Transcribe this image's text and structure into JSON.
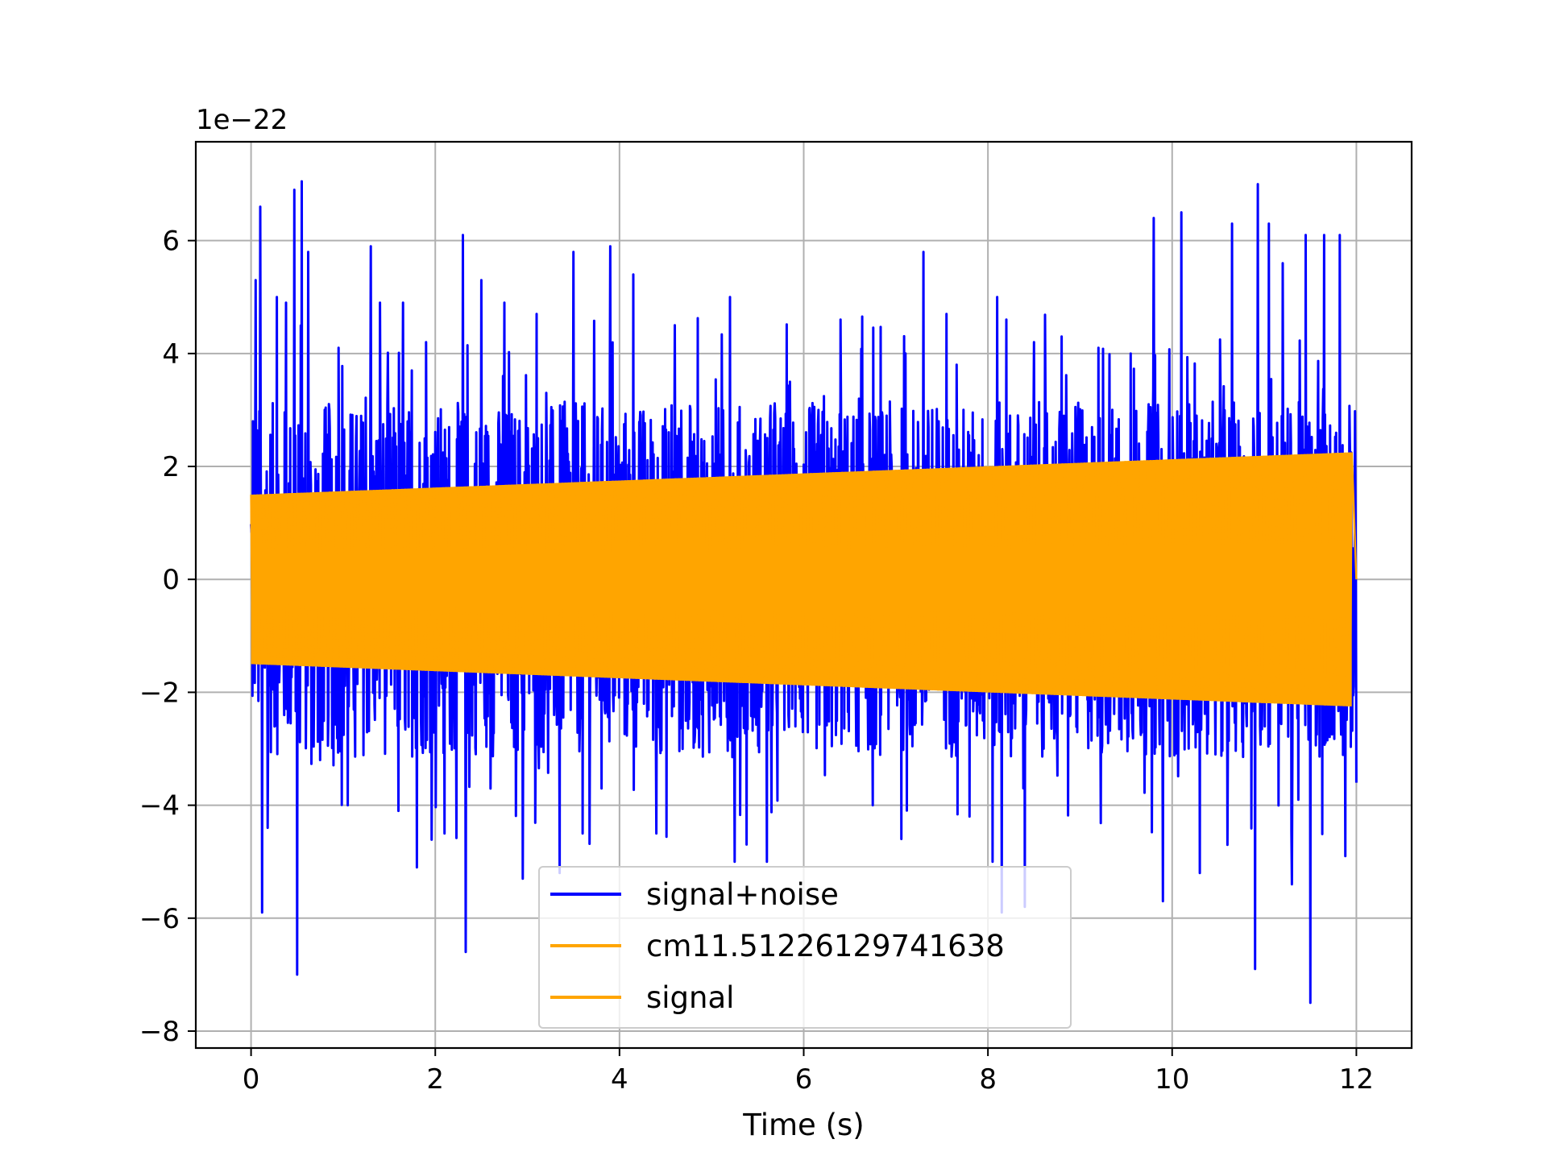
{
  "chart_data": {
    "type": "line",
    "title": "",
    "xlabel": "Time (s)",
    "ylabel": "",
    "y_offset_text": "1e−22",
    "xlim": [
      -0.6,
      12.6
    ],
    "ylim": [
      -8.3,
      7.75
    ],
    "x_ticks": [
      0,
      2,
      4,
      6,
      8,
      10,
      12
    ],
    "x_tick_labels": [
      "0",
      "2",
      "4",
      "6",
      "8",
      "10",
      "12"
    ],
    "y_ticks": [
      -8,
      -6,
      -4,
      -2,
      0,
      2,
      4,
      6
    ],
    "y_tick_labels": [
      "−8",
      "−6",
      "−4",
      "−2",
      "0",
      "2",
      "4",
      "6"
    ],
    "grid": true,
    "legend_position": "bottom-center",
    "series": [
      {
        "name": "signal+noise",
        "color": "#0000ff",
        "x_start": 0,
        "x_end": 12,
        "description_values": {
          "peak_positive": 7.05,
          "peak_negative": -7.55,
          "typical_abs_max": 3.5
        },
        "peaks": [
          [
            0.02,
            2.8
          ],
          [
            0.05,
            5.3
          ],
          [
            0.1,
            6.6
          ],
          [
            0.12,
            -5.9
          ],
          [
            0.18,
            -4.4
          ],
          [
            0.28,
            5.0
          ],
          [
            0.38,
            4.9
          ],
          [
            0.47,
            6.9
          ],
          [
            0.5,
            -7.0
          ],
          [
            0.55,
            7.05
          ],
          [
            0.62,
            5.8
          ],
          [
            0.75,
            -3.2
          ],
          [
            0.85,
            3.0
          ],
          [
            0.95,
            4.1
          ],
          [
            1.05,
            -4.0
          ],
          [
            1.3,
            5.9
          ],
          [
            1.4,
            4.9
          ],
          [
            1.6,
            -4.1
          ],
          [
            1.65,
            4.9
          ],
          [
            1.8,
            -5.1
          ],
          [
            1.9,
            4.2
          ],
          [
            2.1,
            -4.5
          ],
          [
            2.3,
            6.1
          ],
          [
            2.33,
            -6.6
          ],
          [
            2.5,
            5.3
          ],
          [
            2.75,
            4.9
          ],
          [
            2.95,
            -5.3
          ],
          [
            3.1,
            4.7
          ],
          [
            3.35,
            -5.2
          ],
          [
            3.5,
            5.8
          ],
          [
            3.6,
            -4.5
          ],
          [
            3.9,
            5.9
          ],
          [
            4.15,
            5.4
          ],
          [
            4.4,
            -4.5
          ],
          [
            4.6,
            4.5
          ],
          [
            5.2,
            5.0
          ],
          [
            5.25,
            -5.0
          ],
          [
            5.6,
            -5.0
          ],
          [
            5.85,
            3.5
          ],
          [
            6.4,
            4.6
          ],
          [
            6.6,
            3.2
          ],
          [
            6.75,
            -4.0
          ],
          [
            6.9,
            2.9
          ],
          [
            7.3,
            5.8
          ],
          [
            7.55,
            4.7
          ],
          [
            7.8,
            -4.2
          ],
          [
            8.05,
            -5.0
          ],
          [
            8.1,
            5.0
          ],
          [
            8.2,
            4.6
          ],
          [
            8.15,
            -5.9
          ],
          [
            8.4,
            -5.8
          ],
          [
            8.5,
            4.2
          ],
          [
            8.8,
            4.3
          ],
          [
            9.2,
            4.1
          ],
          [
            9.55,
            4.0
          ],
          [
            9.8,
            6.4
          ],
          [
            9.9,
            -5.7
          ],
          [
            10.1,
            6.5
          ],
          [
            10.3,
            -5.2
          ],
          [
            10.6,
            -4.7
          ],
          [
            10.65,
            6.3
          ],
          [
            10.9,
            -6.9
          ],
          [
            10.93,
            7.0
          ],
          [
            11.05,
            6.3
          ],
          [
            11.2,
            5.6
          ],
          [
            11.3,
            -5.4
          ],
          [
            11.45,
            6.1
          ],
          [
            11.5,
            -7.5
          ],
          [
            11.65,
            6.1
          ],
          [
            11.82,
            6.1
          ],
          [
            11.88,
            -4.9
          ],
          [
            12.0,
            -3.6
          ]
        ]
      },
      {
        "name": "cm11.51226129741638",
        "color": "#ffa500",
        "x_start": 0,
        "x_end": 11.95,
        "envelope_start": 1.5,
        "envelope_end": 2.25,
        "initial_value": -0.5
      },
      {
        "name": "signal",
        "color": "#ffa500",
        "x_start": 0,
        "x_end": 11.95,
        "envelope_start": 1.5,
        "envelope_end": 2.25
      }
    ]
  }
}
